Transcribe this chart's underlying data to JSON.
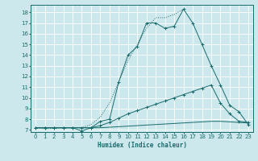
{
  "title": "",
  "xlabel": "Humidex (Indice chaleur)",
  "bg_color": "#cce8ed",
  "grid_color": "#b0d0d8",
  "line_color": "#1a6b6b",
  "xlim": [
    -0.5,
    23.5
  ],
  "ylim": [
    6.8,
    18.7
  ],
  "xticks": [
    0,
    1,
    2,
    3,
    4,
    5,
    6,
    7,
    8,
    9,
    10,
    11,
    12,
    13,
    14,
    15,
    16,
    17,
    18,
    19,
    20,
    21,
    22,
    23
  ],
  "yticks": [
    7,
    8,
    9,
    10,
    11,
    12,
    13,
    14,
    15,
    16,
    17,
    18
  ],
  "series_main_x": [
    0,
    1,
    2,
    3,
    4,
    5,
    6,
    7,
    8,
    9,
    10,
    11,
    12,
    13,
    14,
    15,
    16,
    17,
    18,
    19,
    20,
    21,
    22,
    23
  ],
  "series_main_y": [
    7.2,
    7.2,
    7.2,
    7.2,
    7.2,
    6.9,
    7.2,
    7.8,
    8.0,
    11.5,
    14.0,
    14.8,
    17.0,
    17.0,
    16.5,
    16.7,
    18.3,
    17.0,
    15.0,
    13.0,
    11.2,
    9.3,
    8.7,
    7.5
  ],
  "series_mid_x": [
    0,
    1,
    2,
    3,
    4,
    5,
    6,
    7,
    8,
    9,
    10,
    11,
    12,
    13,
    14,
    15,
    16,
    17,
    18,
    19,
    20,
    21,
    22,
    23
  ],
  "series_mid_y": [
    7.2,
    7.2,
    7.2,
    7.2,
    7.2,
    7.2,
    7.2,
    7.4,
    7.7,
    8.1,
    8.5,
    8.8,
    9.1,
    9.4,
    9.7,
    10.0,
    10.3,
    10.6,
    10.9,
    11.2,
    9.5,
    8.5,
    7.8,
    7.7
  ],
  "series_flat_x": [
    0,
    1,
    2,
    3,
    4,
    5,
    6,
    7,
    8,
    9,
    10,
    11,
    12,
    13,
    14,
    15,
    16,
    17,
    18,
    19,
    20,
    21,
    22,
    23
  ],
  "series_flat_y": [
    7.2,
    7.2,
    7.2,
    7.2,
    7.2,
    7.2,
    7.2,
    7.2,
    7.25,
    7.3,
    7.35,
    7.4,
    7.45,
    7.5,
    7.55,
    7.6,
    7.65,
    7.7,
    7.75,
    7.8,
    7.8,
    7.75,
    7.7,
    7.65
  ],
  "series_dot_x": [
    0,
    1,
    2,
    3,
    4,
    5,
    6,
    7,
    8,
    9,
    10,
    11,
    12,
    13,
    14,
    15,
    16
  ],
  "series_dot_y": [
    7.2,
    7.1,
    7.15,
    7.2,
    7.2,
    7.2,
    7.5,
    8.2,
    9.5,
    11.5,
    13.5,
    15.0,
    16.5,
    17.5,
    17.5,
    17.8,
    18.3
  ]
}
